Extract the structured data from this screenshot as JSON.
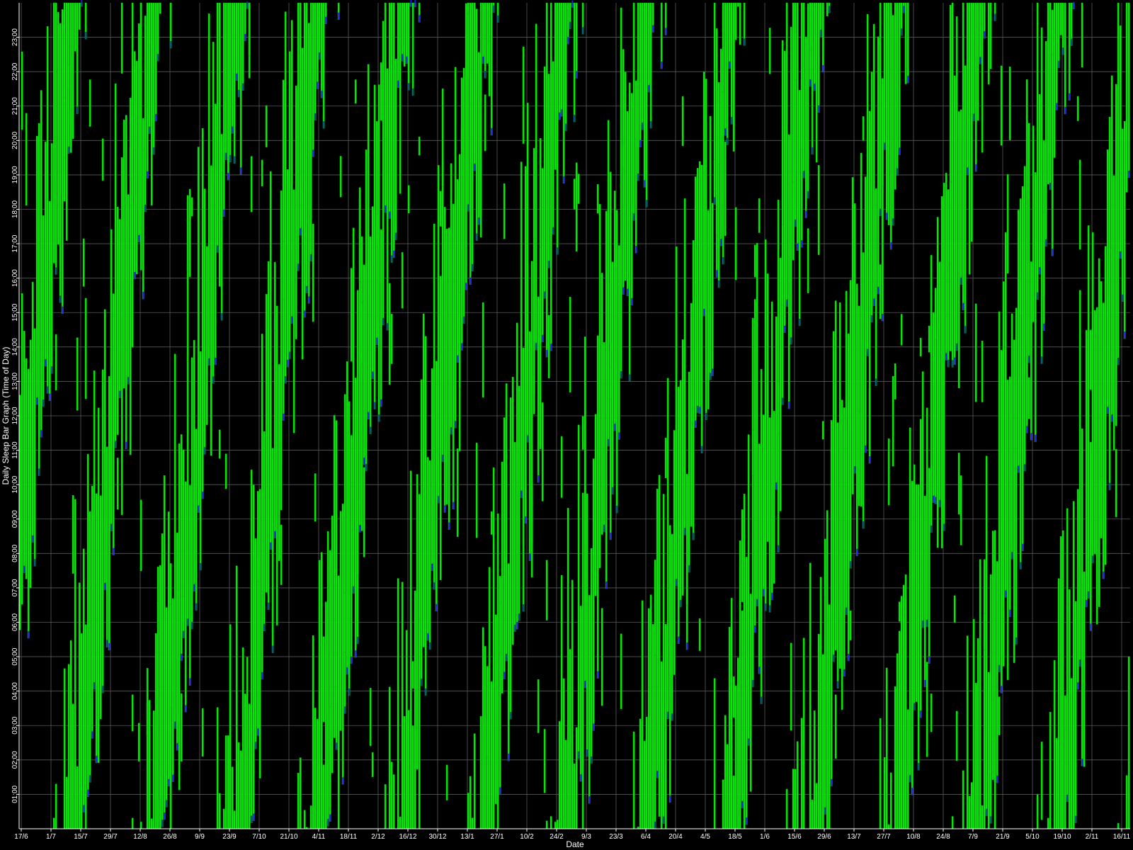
{
  "chart_data": {
    "type": "bar",
    "xlabel": "Date",
    "ylabel": "Daily Sleep Bar Graph (Time of Day)",
    "x_tick_labels": [
      "17/6",
      "1/7",
      "15/7",
      "29/7",
      "12/8",
      "26/8",
      "9/9",
      "23/9",
      "7/10",
      "21/10",
      "4/11",
      "18/11",
      "2/12",
      "16/12",
      "30/12",
      "13/1",
      "27/1",
      "10/2",
      "24/2",
      "9/3",
      "23/3",
      "6/4",
      "20/4",
      "4/5",
      "18/5",
      "1/6",
      "15/6",
      "29/6",
      "13/7",
      "27/7",
      "10/8",
      "24/8",
      "7/9",
      "21/9",
      "5/10",
      "19/10",
      "2/11",
      "16/11"
    ],
    "y_tick_labels": [
      "01:00",
      "02:00",
      "03:00",
      "04:00",
      "05:00",
      "06:00",
      "07:00",
      "08:00",
      "09:00",
      "10:00",
      "11:00",
      "12:00",
      "13:00",
      "14:00",
      "15:00",
      "16:00",
      "17:00",
      "18:00",
      "19:00",
      "20:00",
      "21:00",
      "22:00",
      "23:00"
    ],
    "ylim": [
      0,
      24
    ],
    "grid": true,
    "legend": "none",
    "colors": {
      "background": "#000000",
      "sleep_bar": "#00ee00",
      "sleep_bar_edge": "#11aa11",
      "onset_marker": "#1a22dd",
      "grid": "#5a5a5a",
      "axis": "#ffffff",
      "text": "#ffffff"
    },
    "day_count": 523,
    "series": [
      {
        "pattern": "free-running sleep schedule: nightly sleep blocks drifting later each day and wrapping around midnight",
        "estimated_phase_segments": [
          {
            "from": "17/6",
            "to": "26/8",
            "sleep_start_hours": [
              4.5,
              6.0,
              9.5
            ]
          },
          {
            "from": "26/8",
            "to": "4/11",
            "sleep_start_hours": [
              1.0,
              3.5,
              15.0
            ]
          },
          {
            "from": "4/11",
            "to": "27/1",
            "sleep_start_hours": [
              0.5,
              3.0,
              18.0
            ]
          },
          {
            "from": "27/1",
            "to": "4/5",
            "sleep_start_hours": [
              3.5,
              5.0,
              11.0
            ]
          },
          {
            "from": "4/5",
            "to": "1/6",
            "sleep_start_hours": [
              6.0,
              14.0,
              21.0
            ]
          },
          {
            "from": "1/6",
            "to": "16/11",
            "sleep_start_hours": [
              2.5,
              5.0,
              12.0
            ]
          }
        ]
      }
    ]
  }
}
